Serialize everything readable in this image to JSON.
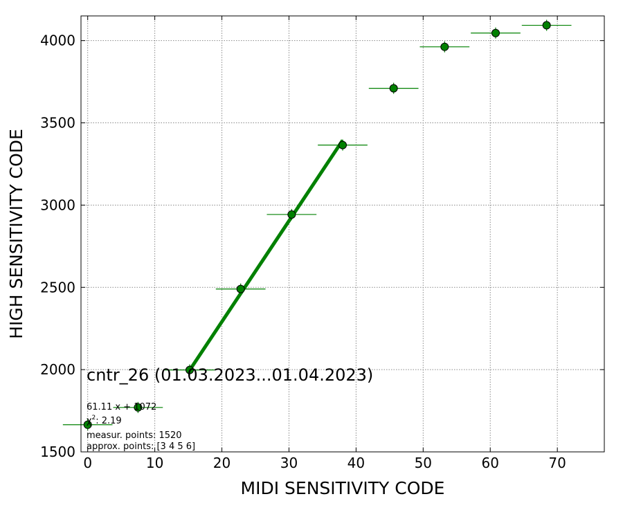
{
  "chart_data": {
    "type": "scatter",
    "title": "",
    "xlabel": "MIDI SENSITIVITY CODE",
    "ylabel": "HIGH SENSITIVITY CODE",
    "xlim": [
      -1,
      77
    ],
    "ylim": [
      1500,
      4150
    ],
    "x_ticks": [
      0,
      10,
      20,
      30,
      40,
      50,
      60,
      70
    ],
    "y_ticks": [
      1500,
      2000,
      2500,
      3000,
      3500,
      4000
    ],
    "grid": true,
    "series": [
      {
        "color": "#008000",
        "points": [
          {
            "x": 0.0,
            "y": 1665,
            "xerr": 3.7
          },
          {
            "x": 7.5,
            "y": 1770,
            "xerr": 3.7
          },
          {
            "x": 15.2,
            "y": 1998,
            "xerr": 3.7
          },
          {
            "x": 22.8,
            "y": 2490,
            "xerr": 3.7
          },
          {
            "x": 30.4,
            "y": 2943,
            "xerr": 3.7
          },
          {
            "x": 38.0,
            "y": 3365,
            "xerr": 3.7
          },
          {
            "x": 45.6,
            "y": 3710,
            "xerr": 3.7
          },
          {
            "x": 53.2,
            "y": 3962,
            "xerr": 3.7
          },
          {
            "x": 60.8,
            "y": 4046,
            "xerr": 3.7
          },
          {
            "x": 68.4,
            "y": 4093,
            "xerr": 3.7
          }
        ]
      }
    ],
    "fit_line": {
      "color": "#008000",
      "x": [
        15.2,
        38.0
      ],
      "y": [
        1997,
        3394
      ]
    },
    "annotations": {
      "main": "cntr_26 (01.03.2023...01.04.2023)",
      "equation": "61.11 x + 1072",
      "chi2_symbol": "χ",
      "chi2_power": "2",
      "chi2_value": ": 2.19",
      "measur_points": "measur. points: 1520",
      "approx_points": "approx. points: [3 4 5 6]"
    }
  }
}
